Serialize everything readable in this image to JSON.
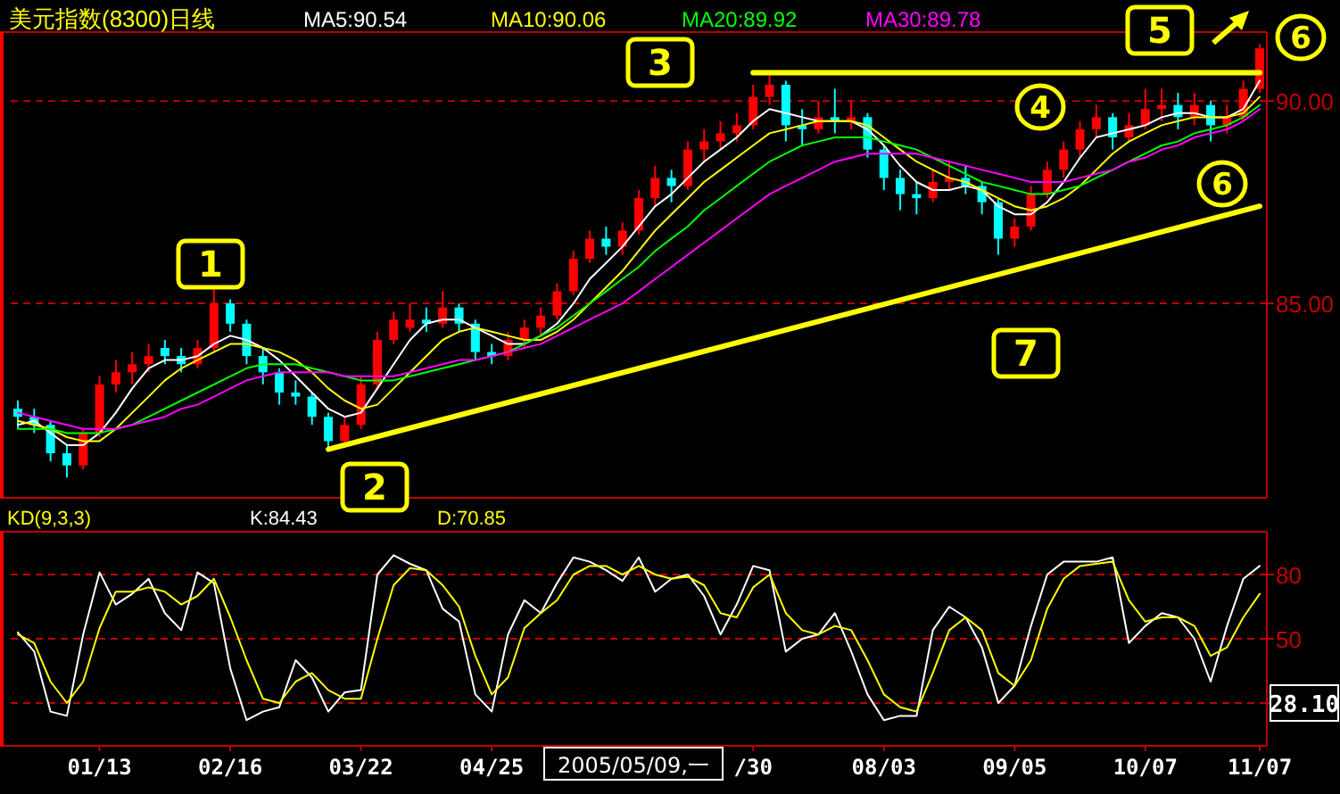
{
  "chart_data": [
    {
      "type": "candlestick",
      "title": "美元指数(8300)日线",
      "legend": "top",
      "grid": "y",
      "tick_labels": "y",
      "categories": [
        null,
        null,
        null,
        null,
        null,
        null,
        null,
        null,
        null,
        null,
        null,
        null,
        null,
        null,
        null,
        null,
        null,
        null,
        null,
        null,
        null,
        null,
        null,
        null,
        null,
        null,
        null,
        null,
        null,
        null,
        null,
        null,
        null,
        null,
        null,
        null,
        null,
        null,
        null,
        null,
        null,
        null,
        null,
        null,
        null,
        null,
        null,
        null,
        null,
        null,
        null,
        null,
        null,
        null,
        null,
        null,
        null,
        null,
        null,
        null,
        null,
        null,
        null,
        null,
        null,
        null,
        null,
        null,
        null,
        null,
        null,
        null,
        null,
        null,
        null,
        null,
        null
      ],
      "ohlc": [
        [
          82.4,
          82.6,
          81.9,
          82.2
        ],
        [
          82.2,
          82.4,
          81.8,
          82.0
        ],
        [
          82.0,
          82.1,
          81.1,
          81.3
        ],
        [
          81.3,
          81.5,
          80.7,
          81.0
        ],
        [
          81.0,
          81.9,
          80.9,
          81.8
        ],
        [
          81.8,
          83.2,
          81.7,
          83.0
        ],
        [
          83.0,
          83.6,
          82.8,
          83.3
        ],
        [
          83.3,
          83.8,
          83.0,
          83.5
        ],
        [
          83.5,
          84.0,
          83.3,
          83.7
        ],
        [
          83.9,
          84.1,
          83.5,
          83.7
        ],
        [
          83.7,
          83.9,
          83.3,
          83.5
        ],
        [
          83.5,
          84.1,
          83.4,
          83.9
        ],
        [
          83.9,
          85.4,
          83.8,
          85.0
        ],
        [
          85.0,
          85.1,
          84.3,
          84.5
        ],
        [
          84.5,
          84.6,
          83.5,
          83.7
        ],
        [
          83.7,
          83.9,
          83.0,
          83.3
        ],
        [
          83.3,
          83.4,
          82.5,
          82.8
        ],
        [
          82.8,
          83.1,
          82.5,
          82.7
        ],
        [
          82.7,
          82.8,
          82.0,
          82.2
        ],
        [
          82.2,
          82.3,
          81.4,
          81.6
        ],
        [
          81.6,
          82.2,
          81.5,
          82.0
        ],
        [
          82.0,
          83.2,
          81.9,
          83.0
        ],
        [
          83.0,
          84.3,
          82.9,
          84.1
        ],
        [
          84.1,
          84.8,
          84.0,
          84.6
        ],
        [
          84.4,
          85.0,
          84.3,
          84.6
        ],
        [
          84.6,
          84.9,
          84.3,
          84.5
        ],
        [
          84.5,
          85.3,
          84.4,
          84.9
        ],
        [
          84.9,
          85.0,
          84.3,
          84.5
        ],
        [
          84.5,
          84.6,
          83.6,
          83.8
        ],
        [
          83.8,
          84.0,
          83.5,
          83.7
        ],
        [
          83.7,
          84.3,
          83.6,
          84.1
        ],
        [
          84.1,
          84.6,
          83.9,
          84.4
        ],
        [
          84.4,
          84.9,
          84.2,
          84.7
        ],
        [
          84.7,
          85.5,
          84.6,
          85.3
        ],
        [
          85.3,
          86.3,
          85.2,
          86.1
        ],
        [
          86.1,
          86.8,
          86.0,
          86.6
        ],
        [
          86.6,
          86.9,
          86.2,
          86.4
        ],
        [
          86.4,
          87.0,
          86.2,
          86.8
        ],
        [
          86.8,
          87.8,
          86.7,
          87.6
        ],
        [
          87.6,
          88.4,
          87.4,
          88.1
        ],
        [
          88.1,
          88.3,
          87.5,
          87.9
        ],
        [
          87.9,
          89.0,
          87.8,
          88.8
        ],
        [
          88.8,
          89.3,
          88.5,
          89.0
        ],
        [
          89.0,
          89.5,
          88.8,
          89.2
        ],
        [
          89.2,
          89.7,
          89.0,
          89.4
        ],
        [
          89.4,
          90.4,
          89.3,
          90.1
        ],
        [
          90.1,
          90.7,
          89.9,
          90.4
        ],
        [
          90.4,
          90.5,
          89.0,
          89.4
        ],
        [
          89.4,
          89.8,
          88.9,
          89.3
        ],
        [
          89.3,
          90.0,
          89.2,
          89.6
        ],
        [
          89.6,
          90.3,
          89.2,
          89.5
        ],
        [
          89.5,
          90.0,
          89.3,
          89.6
        ],
        [
          89.6,
          89.7,
          88.6,
          88.8
        ],
        [
          88.8,
          88.9,
          87.8,
          88.1
        ],
        [
          88.1,
          88.3,
          87.3,
          87.7
        ],
        [
          87.7,
          88.0,
          87.2,
          87.6
        ],
        [
          87.6,
          88.3,
          87.5,
          88.0
        ],
        [
          88.0,
          88.5,
          87.8,
          88.1
        ],
        [
          88.1,
          88.4,
          87.7,
          87.9
        ],
        [
          87.9,
          88.0,
          87.2,
          87.5
        ],
        [
          87.5,
          87.6,
          86.2,
          86.6
        ],
        [
          86.6,
          87.1,
          86.4,
          86.9
        ],
        [
          86.9,
          87.9,
          86.8,
          87.7
        ],
        [
          87.7,
          88.5,
          87.6,
          88.3
        ],
        [
          88.3,
          89.0,
          88.1,
          88.8
        ],
        [
          88.8,
          89.5,
          88.6,
          89.3
        ],
        [
          89.3,
          89.9,
          89.1,
          89.6
        ],
        [
          89.6,
          89.7,
          88.8,
          89.1
        ],
        [
          89.1,
          89.7,
          89.0,
          89.4
        ],
        [
          89.4,
          90.3,
          89.3,
          89.8
        ],
        [
          89.8,
          90.3,
          89.5,
          89.9
        ],
        [
          89.9,
          90.2,
          89.3,
          89.6
        ],
        [
          89.6,
          90.2,
          89.4,
          89.9
        ],
        [
          89.9,
          90.0,
          89.0,
          89.4
        ],
        [
          89.4,
          89.9,
          89.2,
          89.6
        ],
        [
          89.6,
          90.5,
          89.5,
          90.3
        ],
        [
          90.3,
          91.4,
          90.2,
          91.3
        ]
      ],
      "series": [
        {
          "type": "line",
          "name": "MA5:90.54",
          "color": "#ffffff",
          "values": [
            82.0,
            82.1,
            81.8,
            81.5,
            81.5,
            81.8,
            82.3,
            82.9,
            83.4,
            83.6,
            83.6,
            83.7,
            84.0,
            84.2,
            84.1,
            83.9,
            83.6,
            83.2,
            82.8,
            82.4,
            82.2,
            82.3,
            82.9,
            83.5,
            84.1,
            84.5,
            84.6,
            84.6,
            84.4,
            84.2,
            84.0,
            84.0,
            84.2,
            84.5,
            85.0,
            85.6,
            86.0,
            86.4,
            86.9,
            87.4,
            87.7,
            88.1,
            88.5,
            88.8,
            89.1,
            89.5,
            89.8,
            89.7,
            89.6,
            89.5,
            89.5,
            89.5,
            89.3,
            88.9,
            88.4,
            88.0,
            87.8,
            87.8,
            87.9,
            87.8,
            87.4,
            87.2,
            87.2,
            87.5,
            88.0,
            88.6,
            89.1,
            89.2,
            89.3,
            89.4,
            89.6,
            89.7,
            89.7,
            89.6,
            89.6,
            89.8,
            90.5
          ]
        },
        {
          "type": "line",
          "name": "MA10:90.06",
          "color": "#ffff00",
          "values": [
            82.1,
            82.0,
            81.9,
            81.7,
            81.6,
            81.6,
            81.9,
            82.3,
            82.7,
            83.1,
            83.4,
            83.6,
            83.8,
            84.0,
            84.0,
            83.9,
            83.8,
            83.6,
            83.3,
            82.9,
            82.6,
            82.4,
            82.5,
            82.9,
            83.3,
            83.7,
            84.1,
            84.3,
            84.4,
            84.3,
            84.2,
            84.1,
            84.1,
            84.3,
            84.6,
            85.0,
            85.4,
            85.8,
            86.3,
            86.8,
            87.2,
            87.6,
            88.0,
            88.3,
            88.6,
            88.9,
            89.2,
            89.3,
            89.4,
            89.5,
            89.5,
            89.5,
            89.4,
            89.1,
            88.8,
            88.5,
            88.3,
            88.1,
            88.0,
            87.8,
            87.6,
            87.4,
            87.3,
            87.4,
            87.6,
            87.9,
            88.3,
            88.7,
            89.0,
            89.2,
            89.4,
            89.5,
            89.6,
            89.6,
            89.6,
            89.7,
            90.1
          ]
        },
        {
          "type": "line",
          "name": "MA20:89.92",
          "color": "#00ff00",
          "values": [
            81.9,
            81.9,
            81.9,
            81.8,
            81.8,
            81.8,
            81.9,
            82.0,
            82.2,
            82.4,
            82.6,
            82.8,
            83.0,
            83.2,
            83.4,
            83.5,
            83.5,
            83.5,
            83.4,
            83.3,
            83.2,
            83.1,
            83.1,
            83.1,
            83.2,
            83.3,
            83.4,
            83.5,
            83.6,
            83.7,
            83.8,
            84.0,
            84.2,
            84.4,
            84.7,
            85.0,
            85.3,
            85.6,
            85.9,
            86.3,
            86.6,
            86.9,
            87.3,
            87.6,
            87.9,
            88.2,
            88.5,
            88.7,
            88.9,
            89.0,
            89.1,
            89.1,
            89.1,
            89.0,
            88.9,
            88.8,
            88.6,
            88.4,
            88.2,
            88.0,
            87.9,
            87.8,
            87.7,
            87.7,
            87.8,
            87.9,
            88.1,
            88.3,
            88.5,
            88.7,
            88.9,
            89.0,
            89.2,
            89.3,
            89.4,
            89.6,
            89.9
          ]
        },
        {
          "type": "line",
          "name": "MA30:89.78",
          "color": "#ff00ff",
          "values": [
            82.3,
            82.2,
            82.1,
            82.0,
            81.9,
            81.9,
            81.9,
            82.0,
            82.1,
            82.2,
            82.4,
            82.5,
            82.7,
            82.9,
            83.1,
            83.2,
            83.3,
            83.3,
            83.3,
            83.3,
            83.2,
            83.2,
            83.2,
            83.2,
            83.3,
            83.4,
            83.5,
            83.6,
            83.6,
            83.7,
            83.8,
            83.9,
            84.0,
            84.2,
            84.4,
            84.6,
            84.8,
            85.0,
            85.3,
            85.6,
            85.9,
            86.2,
            86.5,
            86.8,
            87.1,
            87.4,
            87.7,
            87.9,
            88.1,
            88.3,
            88.5,
            88.6,
            88.7,
            88.7,
            88.7,
            88.7,
            88.6,
            88.5,
            88.4,
            88.3,
            88.2,
            88.1,
            88.0,
            88.0,
            88.0,
            88.1,
            88.2,
            88.3,
            88.5,
            88.6,
            88.8,
            88.9,
            89.1,
            89.2,
            89.3,
            89.5,
            89.8
          ]
        },
        {
          "type": "line",
          "color": "#ffff00",
          "values": [
            null,
            null,
            null,
            null,
            null,
            null,
            null,
            null,
            null,
            null,
            null,
            null,
            null,
            null,
            null,
            null,
            null,
            null,
            null,
            81.4,
            null,
            null,
            null,
            null,
            null,
            null,
            null,
            null,
            null,
            null,
            null,
            null,
            null,
            null,
            null,
            null,
            null,
            null,
            null,
            null,
            null,
            null,
            null,
            null,
            null,
            null,
            null,
            null,
            null,
            null,
            null,
            null,
            null,
            null,
            null,
            null,
            null,
            null,
            null,
            null,
            null,
            null,
            null,
            null,
            null,
            null,
            null,
            null,
            null,
            null,
            null,
            null,
            null,
            null,
            null,
            null,
            87.4
          ]
        },
        {
          "type": "line",
          "color": "#ffff00",
          "values": [
            null,
            null,
            null,
            null,
            null,
            null,
            null,
            null,
            null,
            null,
            null,
            null,
            null,
            null,
            null,
            null,
            null,
            null,
            null,
            null,
            null,
            null,
            null,
            null,
            null,
            null,
            null,
            null,
            null,
            null,
            null,
            null,
            null,
            null,
            null,
            null,
            null,
            null,
            null,
            null,
            null,
            null,
            null,
            null,
            null,
            90.7,
            null,
            null,
            null,
            null,
            null,
            null,
            null,
            null,
            null,
            null,
            null,
            null,
            null,
            null,
            null,
            null,
            null,
            null,
            null,
            null,
            null,
            null,
            null,
            null,
            null,
            null,
            null,
            null,
            null,
            null,
            90.7
          ]
        }
      ],
      "ylim": [
        80.2,
        91.7
      ],
      "yticks": [
        {
          "value": 85,
          "label": "85.00"
        },
        {
          "value": 90,
          "label": "90.00"
        }
      ],
      "annotations": [
        "1",
        "2",
        "3",
        "4",
        "5",
        "6",
        "6",
        "7"
      ]
    },
    {
      "type": "line",
      "title": "KD(9,3,3)",
      "legend": "top",
      "grid": "y",
      "categories": [
        null,
        null,
        null,
        null,
        null,
        "01/13",
        null,
        null,
        null,
        null,
        null,
        null,
        null,
        "02/16",
        null,
        null,
        null,
        null,
        null,
        null,
        null,
        "03/22",
        null,
        null,
        null,
        null,
        null,
        null,
        null,
        "04/25",
        null,
        null,
        null,
        null,
        null,
        null,
        null,
        null,
        null,
        null,
        null,
        null,
        null,
        null,
        null,
        "/30",
        null,
        null,
        null,
        null,
        null,
        null,
        null,
        "08/03",
        null,
        null,
        null,
        null,
        null,
        null,
        null,
        "09/05",
        null,
        null,
        null,
        null,
        null,
        null,
        null,
        "10/07",
        null,
        null,
        null,
        null,
        null,
        null,
        "11/07"
      ],
      "series": [
        {
          "name": "K:84.43",
          "color": "#ffffff",
          "values": [
            53,
            44,
            16,
            14,
            52,
            81,
            66,
            71,
            78,
            62,
            54,
            81,
            76,
            36,
            12,
            16,
            18,
            40,
            32,
            16,
            25,
            26,
            80,
            89,
            85,
            82,
            64,
            58,
            24,
            16,
            52,
            68,
            62,
            76,
            88,
            86,
            82,
            77,
            88,
            72,
            78,
            80,
            70,
            52,
            66,
            84,
            82,
            44,
            50,
            52,
            62,
            44,
            24,
            12,
            14,
            14,
            54,
            65,
            60,
            46,
            20,
            28,
            56,
            80,
            86,
            86,
            86,
            88,
            48,
            56,
            62,
            60,
            50,
            30,
            56,
            78,
            84
          ]
        },
        {
          "name": "D:70.85",
          "color": "#ffff00",
          "values": [
            52,
            48,
            30,
            20,
            30,
            55,
            72,
            72,
            74,
            72,
            66,
            70,
            78,
            60,
            40,
            22,
            20,
            30,
            34,
            26,
            22,
            22,
            50,
            75,
            83,
            82,
            75,
            65,
            42,
            24,
            32,
            55,
            62,
            68,
            80,
            84,
            84,
            80,
            84,
            80,
            78,
            79,
            75,
            62,
            60,
            74,
            80,
            62,
            54,
            52,
            56,
            54,
            40,
            24,
            18,
            16,
            34,
            54,
            60,
            54,
            34,
            28,
            40,
            64,
            78,
            84,
            85,
            86,
            68,
            58,
            60,
            60,
            56,
            42,
            46,
            60,
            71
          ]
        }
      ],
      "ylim": [
        0,
        100
      ],
      "yticks": [
        {
          "value": 20,
          "label": null
        },
        50,
        80
      ],
      "annotations": [
        "2005/05/09,一",
        "28.10"
      ]
    }
  ]
}
